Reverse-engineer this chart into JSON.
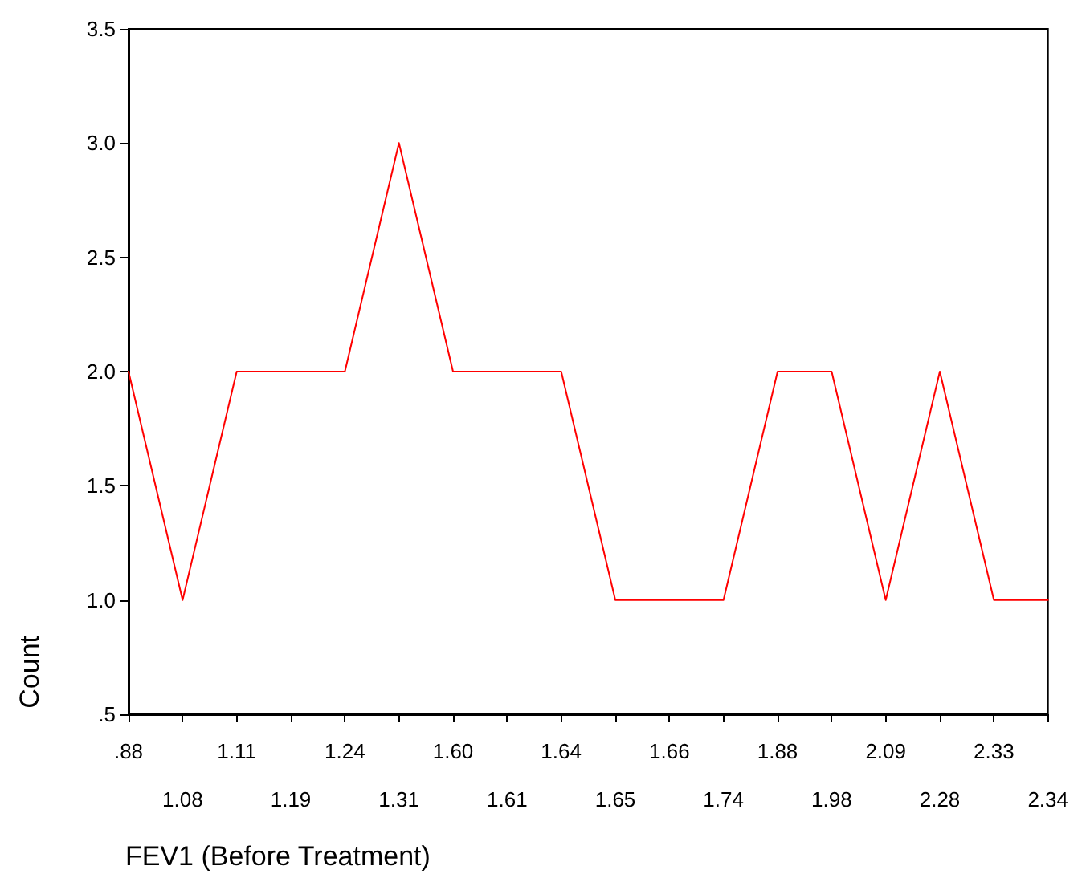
{
  "chart_data": {
    "type": "line",
    "xlabel": "FEV1 (Before Treatment)",
    "ylabel": "Count",
    "categories": [
      ".88",
      "1.08",
      "1.11",
      "1.19",
      "1.24",
      "1.31",
      "1.60",
      "1.61",
      "1.64",
      "1.65",
      "1.66",
      "1.74",
      "1.88",
      "1.98",
      "2.09",
      "2.28",
      "2.33",
      "2.34"
    ],
    "series": [
      {
        "color": "#ff0000",
        "values": [
          2,
          1,
          2,
          2,
          2,
          3,
          2,
          2,
          2,
          1,
          1,
          1,
          2,
          2,
          1,
          2,
          1,
          1
        ]
      }
    ],
    "ylim": [
      0.5,
      3.5
    ],
    "yticks": [
      {
        "value": 0.5,
        "label": ".5"
      },
      {
        "value": 1,
        "label": "1.0"
      },
      {
        "value": 1.5,
        "label": "1.5"
      },
      {
        "value": 2,
        "label": "2.0"
      },
      {
        "value": 2.5,
        "label": "2.5"
      },
      {
        "value": 3,
        "label": "3.0"
      },
      {
        "value": 3.5,
        "label": "3.5"
      }
    ],
    "grid": false,
    "marker": "none",
    "line_style": "solid"
  }
}
